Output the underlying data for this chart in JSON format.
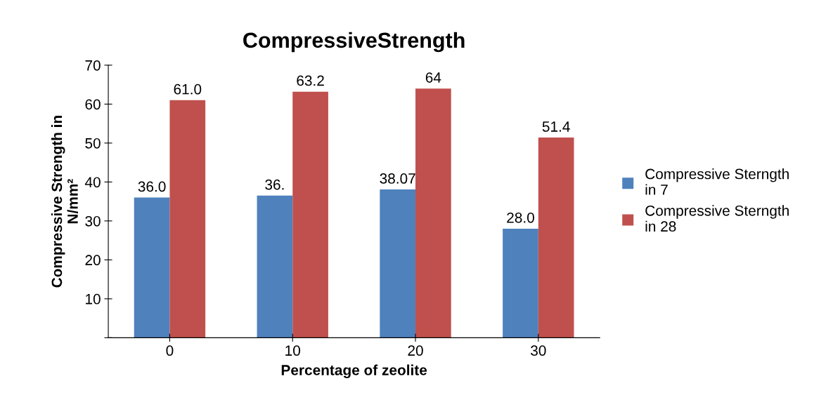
{
  "chart_data": {
    "type": "bar",
    "title": "CompressiveStrength",
    "xlabel": "Percentage of zeolite",
    "ylabel": "Compressive Strength in\nN/mm²",
    "categories": [
      "0",
      "10",
      "20",
      "30"
    ],
    "series": [
      {
        "name": "Compressive Sterngth\nin 7",
        "color": "#4f81bd",
        "values": [
          36.0,
          36.5,
          38.07,
          28.0
        ],
        "value_labels": [
          "36.0",
          "36.",
          "38.07",
          "28.0"
        ]
      },
      {
        "name": "Compressive Sterngth\nin 28",
        "color": "#c0504d",
        "values": [
          61.0,
          63.2,
          64,
          51.4
        ],
        "value_labels": [
          "61.0",
          "63.2",
          "64",
          "51.4"
        ]
      }
    ],
    "ylim": [
      0,
      70
    ],
    "yticks": [
      {
        "value": 0,
        "label": null
      },
      10,
      20,
      30,
      40,
      50,
      60,
      70
    ],
    "grid": false,
    "legend": "right"
  }
}
